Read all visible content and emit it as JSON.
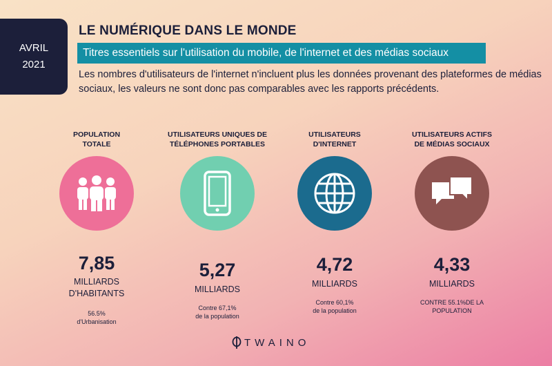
{
  "date": {
    "month": "AVRIL",
    "year": "2021"
  },
  "header": {
    "title": "LE NUMÉRIQUE DANS LE MONDE",
    "subtitle": "Titres essentiels sur l'utilisation du mobile, de l'internet et des médias sociaux",
    "note": "Les nombres d'utilisateurs de l'internet n'incluent plus les données provenant des plateformes de médias sociaux, les valeurs ne sont donc pas comparables avec les rapports précédents."
  },
  "stats": [
    {
      "label1": "POPULATION",
      "label2": "TOTALE",
      "icon": "people-icon",
      "color": "#ee6f98",
      "value": "7,85",
      "unit1": "MILLIARDS",
      "unit2": "D'HABITANTS",
      "foot1": "56.5%",
      "foot2": "d'Urbanisation"
    },
    {
      "label1": "UTILISATEURS UNIQUES DE",
      "label2": "TÉLÉPHONES PORTABLES",
      "icon": "mobile-phone-icon",
      "color": "#71cfb0",
      "value": "5,27",
      "unit1": "MILLIARDS",
      "unit2": "",
      "foot1": "Contre 67,1%",
      "foot2": "de la population"
    },
    {
      "label1": "UTILISATEURS",
      "label2": "D'INTERNET",
      "icon": "globe-icon",
      "color": "#1b6b8e",
      "value": "4,72",
      "unit1": "MILLIARDS",
      "unit2": "",
      "foot1": "Contre 60,1%",
      "foot2": "de la population"
    },
    {
      "label1": "UTILISATEURS ACTIFS",
      "label2": "DE MÉDIAS SOCIAUX",
      "icon": "chat-bubbles-icon",
      "color": "#8e5350",
      "value": "4,33",
      "unit1": "MILLIARDS",
      "unit2": "",
      "foot1": "CONTRE 55.1%DE LA",
      "foot2": "POPULATION"
    }
  ],
  "logo": {
    "text": "TWAINO"
  }
}
